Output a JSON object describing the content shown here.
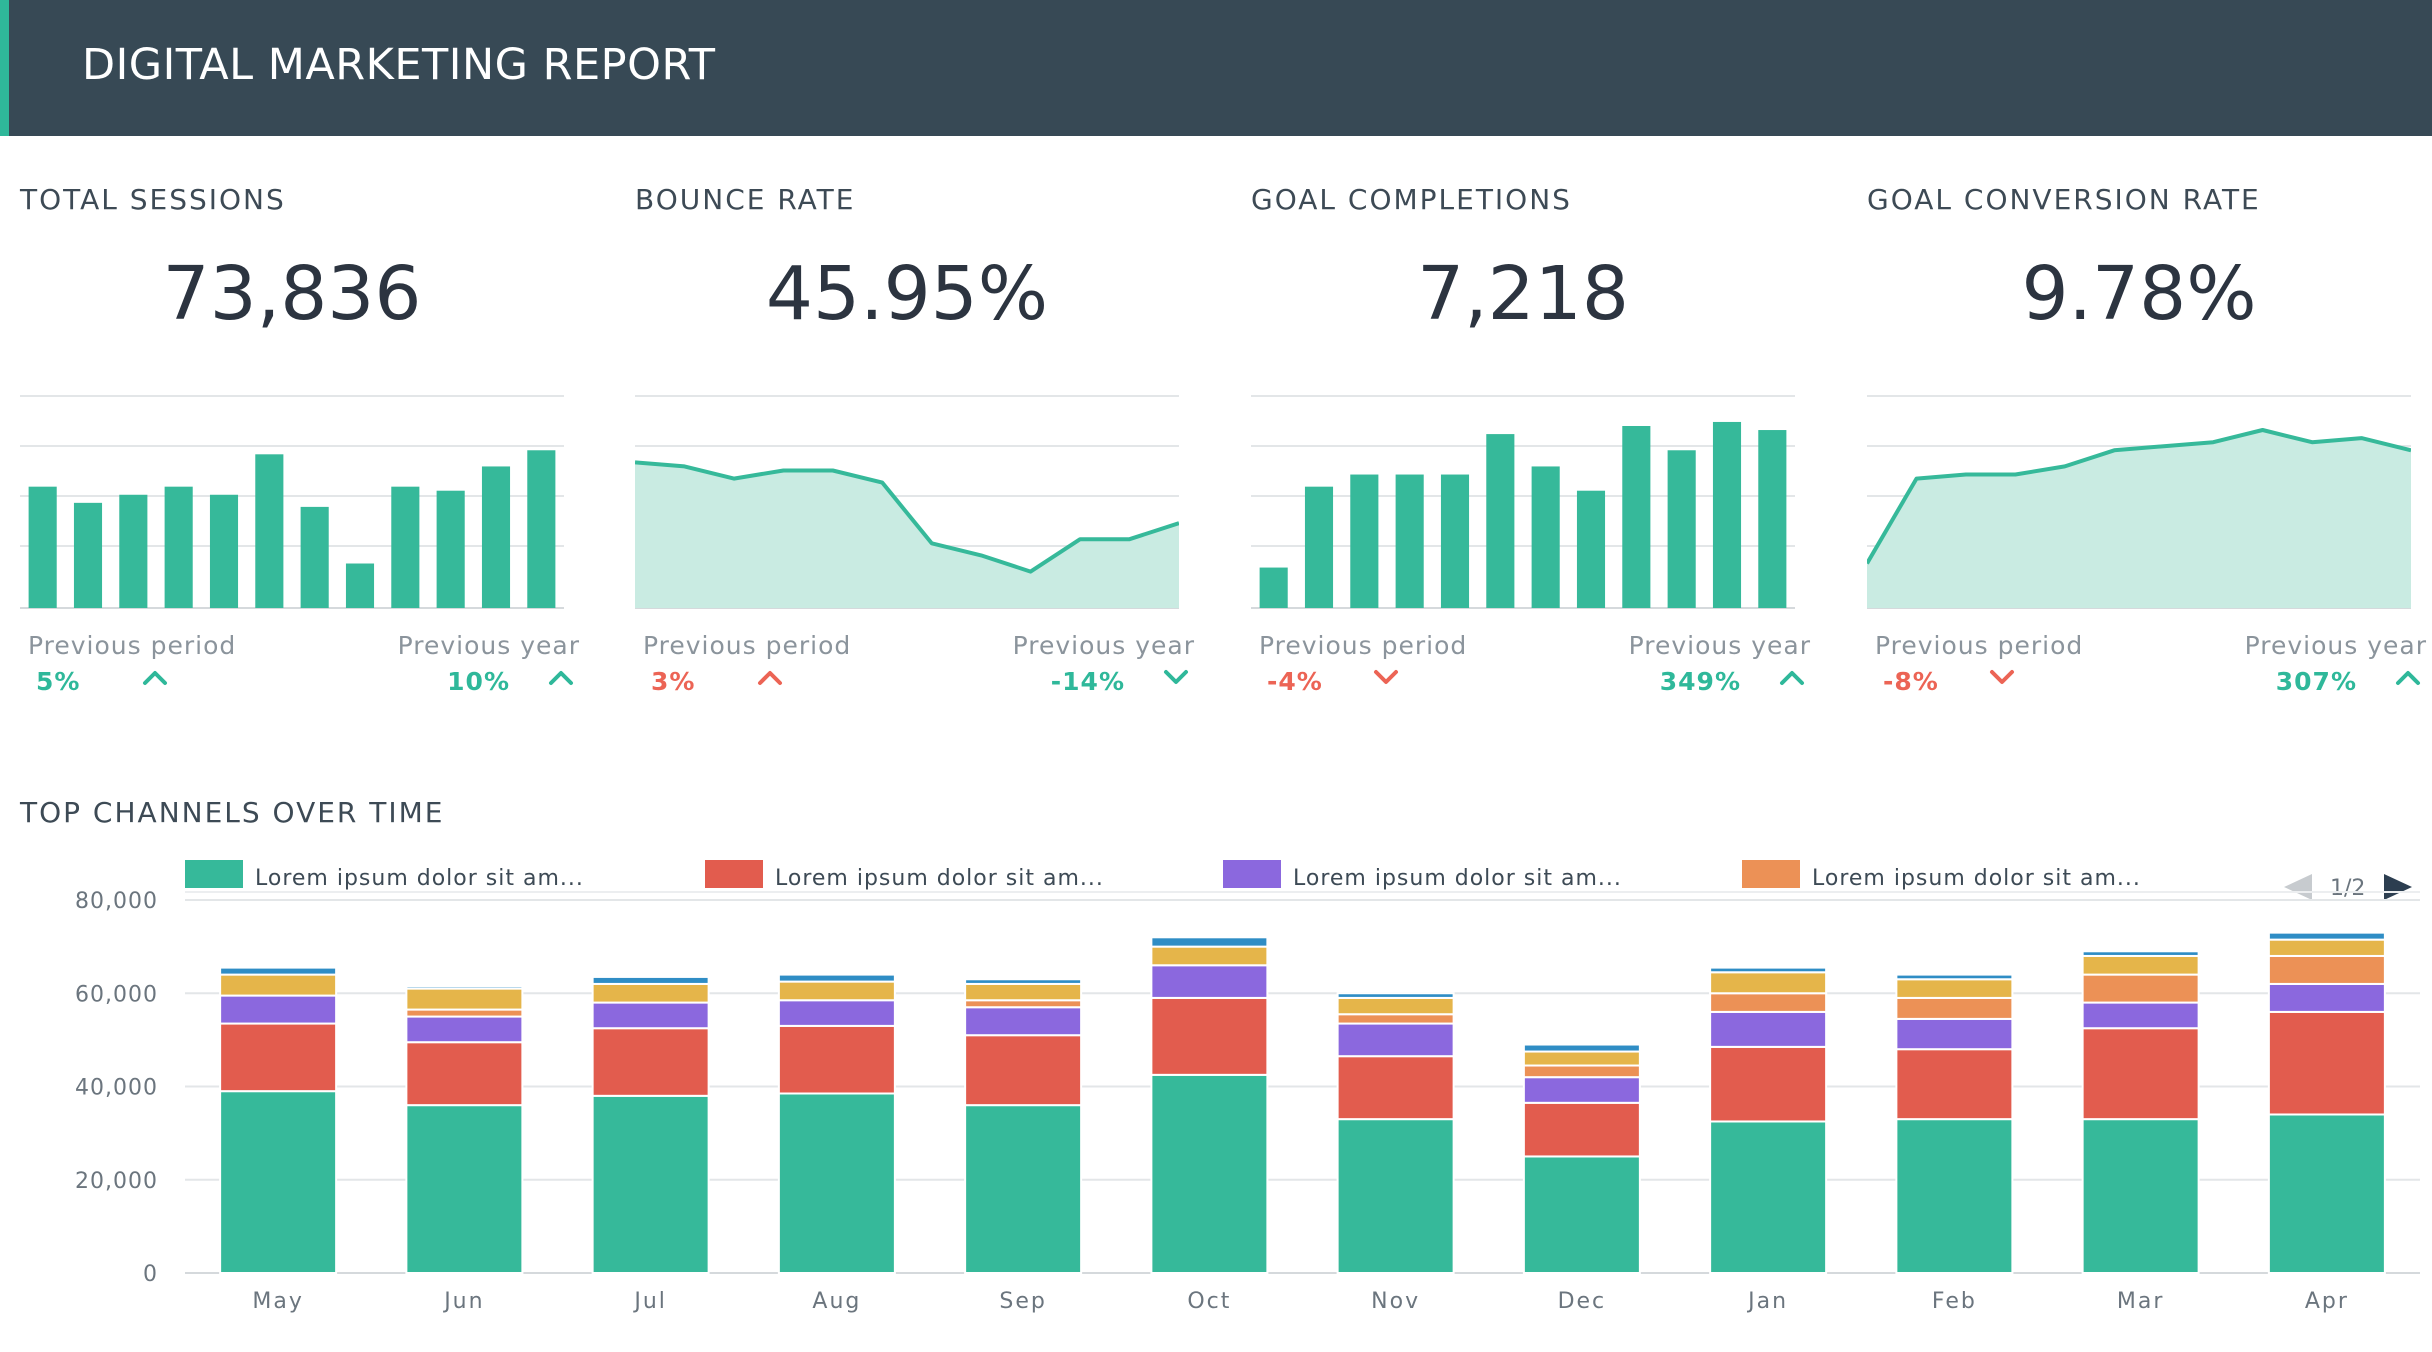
{
  "header": {
    "title": "DIGITAL MARKETING REPORT"
  },
  "colors": {
    "teal": "#36b99a",
    "teal_area": "#c9ebe2",
    "red": "#e25c4e",
    "purple": "#8b68de",
    "gold": "#e5b54a",
    "orange": "#ec9156",
    "blue": "#2f8dc5",
    "positive": "#2fb89a",
    "negative": "#ec6455"
  },
  "kpis": [
    {
      "label": "TOTAL SESSIONS",
      "value": "73,836",
      "prev_period_label": "Previous period",
      "prev_period_value": "5%",
      "prev_period_dir": "up",
      "prev_period_status": "positive",
      "prev_year_label": "Previous year",
      "prev_year_value": "10%",
      "prev_year_dir": "up",
      "prev_year_status": "positive",
      "spark": {
        "type": "bar",
        "values": [
          30,
          26,
          28,
          30,
          28,
          38,
          25,
          11,
          30,
          29,
          35,
          39
        ]
      }
    },
    {
      "label": "BOUNCE RATE",
      "value": "45.95%",
      "prev_period_label": "Previous period",
      "prev_period_value": "3%",
      "prev_period_dir": "up",
      "prev_period_status": "negative",
      "prev_year_label": "Previous year",
      "prev_year_value": "-14%",
      "prev_year_dir": "down",
      "prev_year_status": "positive",
      "spark": {
        "type": "area",
        "values": [
          36,
          35,
          32,
          34,
          34,
          31,
          16,
          13,
          9,
          17,
          17,
          21
        ]
      }
    },
    {
      "label": "GOAL COMPLETIONS",
      "value": "7,218",
      "prev_period_label": "Previous period",
      "prev_period_value": "-4%",
      "prev_period_dir": "down",
      "prev_period_status": "negative",
      "prev_year_label": "Previous year",
      "prev_year_value": "349%",
      "prev_year_dir": "up",
      "prev_year_status": "positive",
      "spark": {
        "type": "bar",
        "values": [
          10,
          30,
          33,
          33,
          33,
          43,
          35,
          29,
          45,
          39,
          46,
          44
        ]
      }
    },
    {
      "label": "GOAL CONVERSION RATE",
      "value": "9.78%",
      "prev_period_label": "Previous period",
      "prev_period_value": "-8%",
      "prev_period_dir": "down",
      "prev_period_status": "negative",
      "prev_year_label": "Previous year",
      "prev_year_value": "307%",
      "prev_year_dir": "up",
      "prev_year_status": "positive",
      "spark": {
        "type": "area",
        "values": [
          11,
          32,
          33,
          33,
          35,
          39,
          40,
          41,
          44,
          41,
          42,
          39
        ]
      }
    }
  ],
  "section": {
    "title": "TOP CHANNELS OVER TIME"
  },
  "chart_data": {
    "type": "bar",
    "stacked": true,
    "categories": [
      "May",
      "Jun",
      "Jul",
      "Aug",
      "Sep",
      "Oct",
      "Nov",
      "Dec",
      "Jan",
      "Feb",
      "Mar",
      "Apr"
    ],
    "ylim": [
      0,
      80000
    ],
    "yticks": [
      "0",
      "20,000",
      "40,000",
      "60,000",
      "80,000"
    ],
    "ytick_values": [
      0,
      20000,
      40000,
      60000,
      80000
    ],
    "legend": {
      "placement": "top",
      "page": "1/2"
    },
    "series": [
      {
        "name": "Lorem ipsum dolor sit am...",
        "color": "#36b99a",
        "values": [
          39000,
          36000,
          38000,
          38500,
          36000,
          42500,
          33000,
          25000,
          32500,
          33000,
          33000,
          34000
        ]
      },
      {
        "name": "Lorem ipsum dolor sit am...",
        "color": "#e25c4e",
        "values": [
          14500,
          13500,
          14500,
          14500,
          15000,
          16500,
          13500,
          11500,
          16000,
          15000,
          19500,
          22000
        ]
      },
      {
        "name": "Lorem ipsum dolor sit am...",
        "color": "#8b68de",
        "values": [
          6000,
          5500,
          5500,
          5500,
          6000,
          7000,
          7000,
          5500,
          7500,
          6500,
          5500,
          6000
        ]
      },
      {
        "name": "Lorem ipsum dolor sit am...",
        "color": "#ec9156",
        "values": [
          0,
          1500,
          0,
          0,
          1500,
          0,
          2000,
          2500,
          4000,
          4500,
          6000,
          6000
        ]
      },
      {
        "name": "",
        "color": "#e5b54a",
        "values": [
          4500,
          4500,
          4000,
          4000,
          3500,
          4000,
          3500,
          3000,
          4500,
          4000,
          4000,
          3500
        ]
      },
      {
        "name": "",
        "color": "#2f8dc5",
        "values": [
          1500,
          500,
          1500,
          1500,
          1000,
          2000,
          1000,
          1500,
          1000,
          1000,
          1000,
          1500
        ]
      }
    ]
  }
}
